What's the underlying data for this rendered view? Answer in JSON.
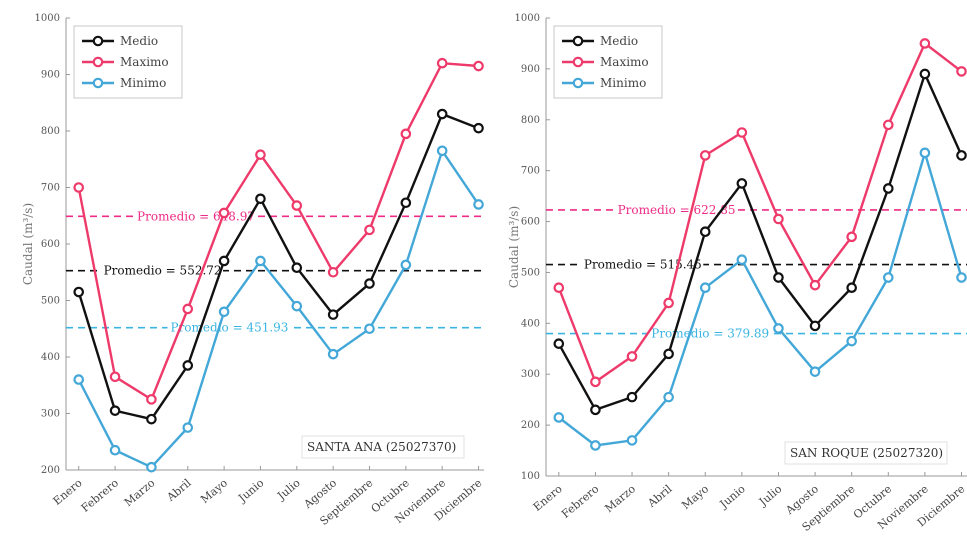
{
  "colors": {
    "medio": "#111111",
    "maximo": "#ee3a6a",
    "minimo": "#43a7d8",
    "avg_max": "#ee2c86",
    "avg_med": "#111111",
    "avg_min": "#3ab5e3"
  },
  "chart_data": [
    {
      "type": "line",
      "station": "SANTA ANA (25027370)",
      "ylabel": "Caudal (m³/s)",
      "ylim": [
        200,
        1000
      ],
      "yticks": [
        "200",
        "300",
        "400",
        "500",
        "600",
        "700",
        "800",
        "900",
        "1000"
      ],
      "categories": [
        "Enero",
        "Febrero",
        "Marzo",
        "Abril",
        "Mayo",
        "Junio",
        "Julio",
        "Agosto",
        "Septiembre",
        "Octubre",
        "Noviembre",
        "Diciembre"
      ],
      "legend": "top-left",
      "series": [
        {
          "name": "Medio",
          "key": "medio",
          "values": [
            515,
            305,
            290,
            385,
            570,
            680,
            558,
            475,
            530,
            673,
            830,
            805
          ]
        },
        {
          "name": "Maximo",
          "key": "maximo",
          "values": [
            700,
            365,
            325,
            485,
            655,
            758,
            668,
            550,
            625,
            795,
            920,
            915
          ]
        },
        {
          "name": "Minimo",
          "key": "minimo",
          "values": [
            360,
            235,
            205,
            275,
            480,
            570,
            490,
            405,
            450,
            563,
            765,
            670
          ]
        }
      ],
      "averages": [
        {
          "label": "Promedio = 648.97",
          "value": 648.97,
          "key": "avg_max"
        },
        {
          "label": "Promedio = 552.72",
          "value": 552.72,
          "key": "avg_med"
        },
        {
          "label": "Promedio = 451.93",
          "value": 451.93,
          "key": "avg_min"
        }
      ]
    },
    {
      "type": "line",
      "station": "SAN ROQUE (25027320)",
      "ylabel": "Caudal (m³/s)",
      "ylim": [
        100,
        1000
      ],
      "yticks": [
        "100",
        "200",
        "300",
        "400",
        "500",
        "600",
        "700",
        "800",
        "900",
        "1000"
      ],
      "categories": [
        "Enero",
        "Febrero",
        "Marzo",
        "Abril",
        "Mayo",
        "Junio",
        "Julio",
        "Agosto",
        "Septiembre",
        "Octubre",
        "Noviembre",
        "Diciembre"
      ],
      "legend": "top-left",
      "series": [
        {
          "name": "Medio",
          "key": "medio",
          "values": [
            360,
            230,
            255,
            340,
            580,
            675,
            490,
            395,
            470,
            665,
            890,
            730
          ]
        },
        {
          "name": "Maximo",
          "key": "maximo",
          "values": [
            470,
            285,
            335,
            440,
            730,
            775,
            605,
            475,
            570,
            790,
            950,
            895
          ]
        },
        {
          "name": "Minimo",
          "key": "minimo",
          "values": [
            215,
            160,
            170,
            255,
            470,
            525,
            390,
            305,
            365,
            490,
            735,
            490
          ]
        }
      ],
      "averages": [
        {
          "label": "Promedio = 622.85",
          "value": 622.85,
          "key": "avg_max"
        },
        {
          "label": "Promedio = 515.45",
          "value": 515.45,
          "key": "avg_med"
        },
        {
          "label": "Promedio = 379.89",
          "value": 379.89,
          "key": "avg_min"
        }
      ]
    }
  ]
}
